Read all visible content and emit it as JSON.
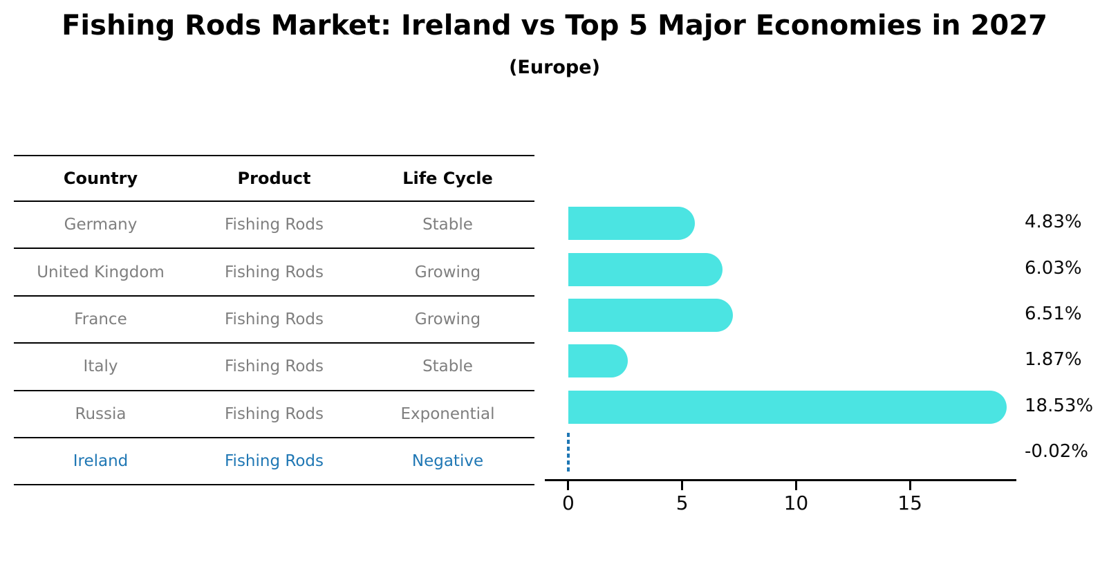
{
  "title": "Fishing Rods Market: Ireland vs Top 5 Major Economies in 2027",
  "subtitle": "(Europe)",
  "table": {
    "headers": [
      "Country",
      "Product",
      "Life Cycle"
    ],
    "rows": [
      {
        "country": "Germany",
        "product": "Fishing Rods",
        "life_cycle": "Stable",
        "highlight": false
      },
      {
        "country": "United Kingdom",
        "product": "Fishing Rods",
        "life_cycle": "Growing",
        "highlight": false
      },
      {
        "country": "France",
        "product": "Fishing Rods",
        "life_cycle": "Growing",
        "highlight": false
      },
      {
        "country": "Italy",
        "product": "Fishing Rods",
        "life_cycle": "Stable",
        "highlight": false
      },
      {
        "country": "Russia",
        "product": "Fishing Rods",
        "life_cycle": "Exponential",
        "highlight": false
      },
      {
        "country": "Ireland",
        "product": "Fishing Rods",
        "life_cycle": "Negative",
        "highlight": true
      }
    ]
  },
  "chart_data": {
    "type": "bar",
    "orientation": "horizontal",
    "title": "Fishing Rods Market: Ireland vs Top 5 Major Economies in 2027",
    "subtitle": "(Europe)",
    "categories": [
      "Germany",
      "United Kingdom",
      "France",
      "Italy",
      "Russia",
      "Ireland"
    ],
    "values": [
      4.83,
      6.03,
      6.51,
      1.87,
      18.53,
      -0.02
    ],
    "value_labels": [
      "4.83%",
      "6.03%",
      "6.51%",
      "1.87%",
      "18.53%",
      "-0.02%"
    ],
    "xlabel": "",
    "ylabel": "",
    "x_ticks": [
      0,
      5,
      10,
      15
    ],
    "xlim": [
      -1.03,
      19.67
    ],
    "grid": false,
    "legend": false,
    "bar_color": "#4BE4E2",
    "negative_marker": "dashed-zero-line",
    "negative_marker_color": "#1f77b4"
  },
  "colors": {
    "bar": "#4BE4E2",
    "highlight_text": "#1f77b4",
    "cell_text": "#7f7f7f",
    "axis": "#000000"
  }
}
